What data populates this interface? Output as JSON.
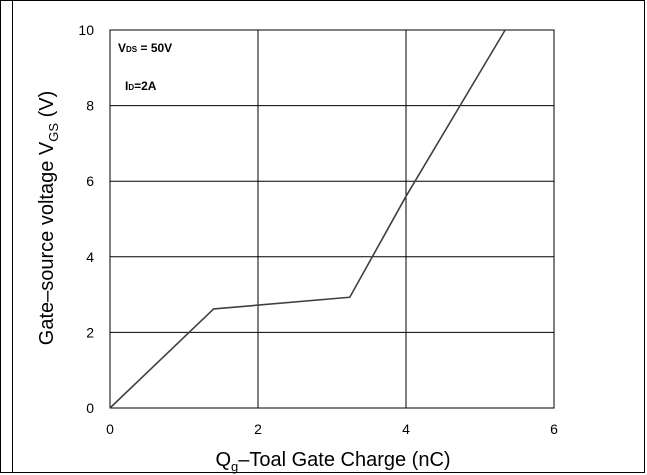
{
  "chart_data": {
    "type": "line",
    "xlabel": {
      "main": "Q",
      "sub": "g",
      "rest": "–Toal Gate Charge  (nC)"
    },
    "ylabel": {
      "main": "Gate–source voltage V",
      "sub": "GS",
      "rest": " (V)"
    },
    "xlim": [
      0,
      6
    ],
    "ylim": [
      0,
      10
    ],
    "xticks": [
      0,
      2,
      4,
      6
    ],
    "yticks": [
      0,
      2,
      4,
      6,
      8,
      10
    ],
    "grid": true,
    "annotations": [
      {
        "main": "V",
        "sub": "DS",
        "rest": " = 50V"
      },
      {
        "main": "I",
        "sub": "D",
        "rest": "=2A"
      }
    ],
    "series": [
      {
        "color": "#404040",
        "points": [
          {
            "x": 0,
            "y": 0
          },
          {
            "x": 1.4,
            "y": 2.62
          },
          {
            "x": 3.24,
            "y": 2.93
          },
          {
            "x": 4.0,
            "y": 5.6
          },
          {
            "x": 5.34,
            "y": 10.0
          }
        ]
      }
    ]
  }
}
